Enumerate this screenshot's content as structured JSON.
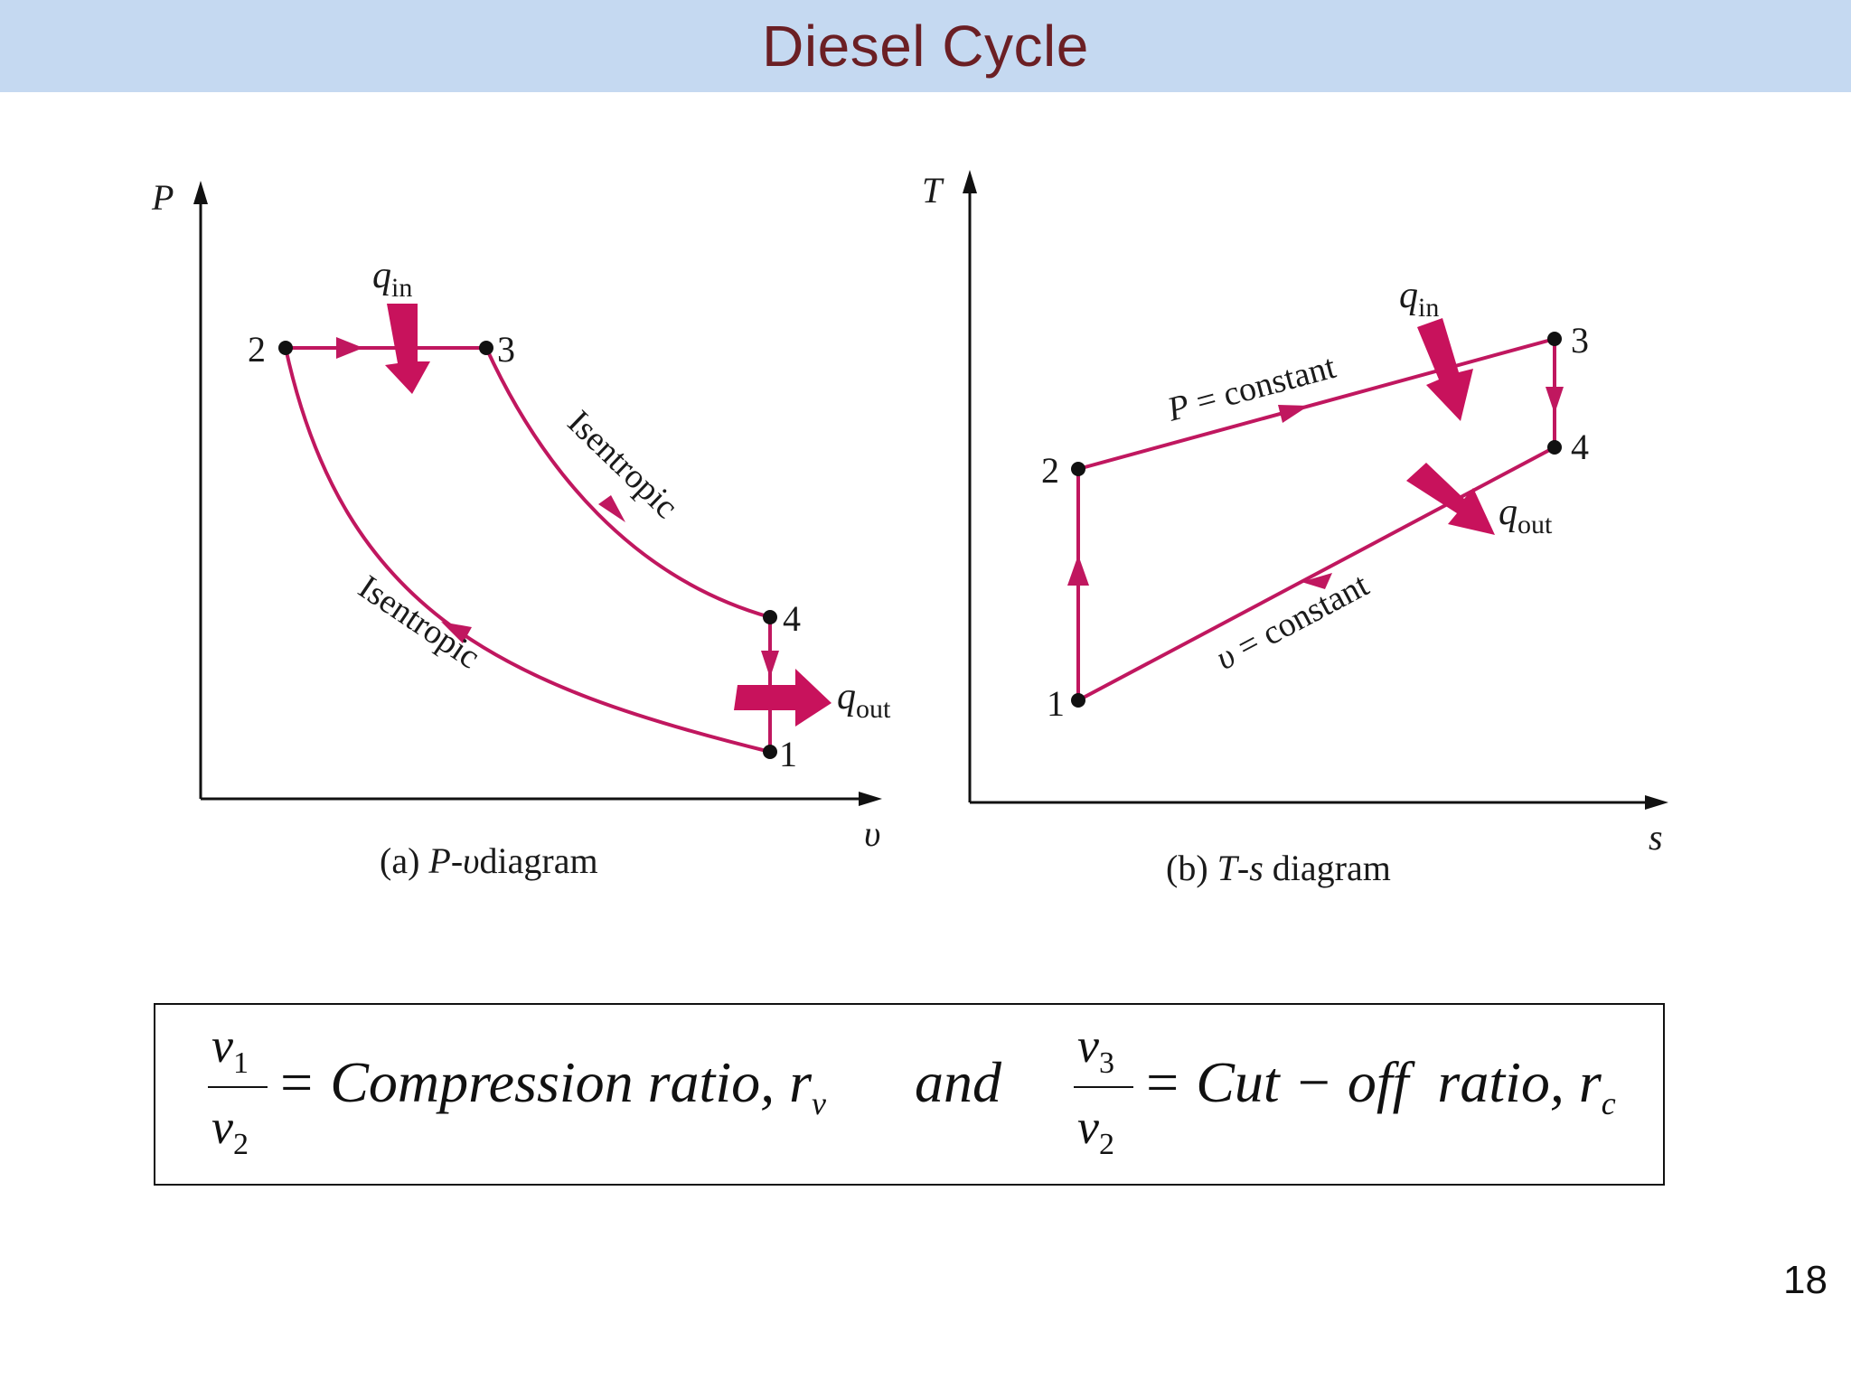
{
  "slide": {
    "title": "Diesel Cycle",
    "page_number": "18"
  },
  "colors": {
    "title_bar": "#c5d9f1",
    "title_text": "#6b1f24",
    "process_line": "#c0175f",
    "heat_arrow": "#c8125c"
  },
  "pv_diagram": {
    "y_axis_label": "P",
    "x_axis_label": "υ",
    "caption_prefix": "(a) ",
    "caption_var1": "P",
    "caption_dash": "-",
    "caption_var2": "υ",
    "caption_suffix": "diagram",
    "points": [
      "1",
      "2",
      "3",
      "4"
    ],
    "process_labels": {
      "expansion": "Isentropic",
      "compression": "Isentropic"
    },
    "heat_in": {
      "symbol": "q",
      "subscript": "in"
    },
    "heat_out": {
      "symbol": "q",
      "subscript": "out"
    }
  },
  "ts_diagram": {
    "y_axis_label": "T",
    "x_axis_label": "s",
    "caption_prefix": "(b) ",
    "caption_var1": "T",
    "caption_dash": "-",
    "caption_var2": "s",
    "caption_suffix": " diagram",
    "points": [
      "1",
      "2",
      "3",
      "4"
    ],
    "process_labels": {
      "heat_addition_var": "P",
      "heat_addition_rest": " = constant",
      "heat_rejection_var": "υ",
      "heat_rejection_rest": " = constant"
    },
    "heat_in": {
      "symbol": "q",
      "subscript": "in"
    },
    "heat_out": {
      "symbol": "q",
      "subscript": "out"
    }
  },
  "formula": {
    "left": {
      "numerator": "v",
      "numerator_sub": "1",
      "denominator": "v",
      "denominator_sub": "2",
      "text": "= Compression ratio, r",
      "text_sub": "v"
    },
    "connector": "and",
    "right": {
      "numerator": "v",
      "numerator_sub": "3",
      "denominator": "v",
      "denominator_sub": "2",
      "text": "= Cut − off  ratio, r",
      "text_sub": "c"
    }
  }
}
